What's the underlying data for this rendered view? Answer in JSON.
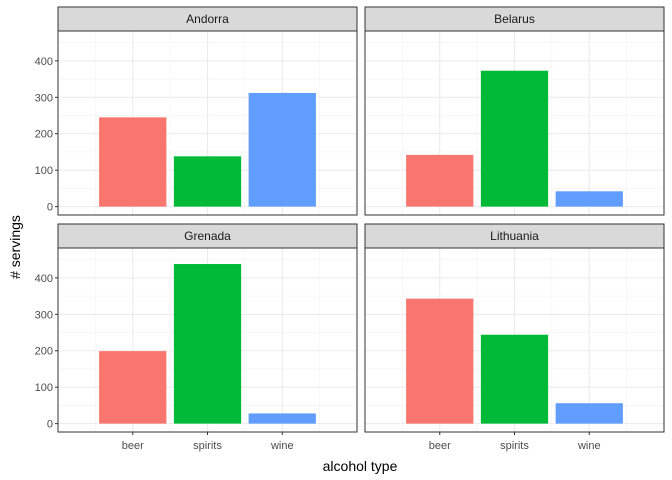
{
  "chart_data": {
    "type": "bar",
    "facets": [
      "Andorra",
      "Belarus",
      "Grenada",
      "Lithuania"
    ],
    "categories": [
      "beer",
      "spirits",
      "wine"
    ],
    "series": [
      {
        "name": "Andorra",
        "values": [
          245,
          138,
          312
        ]
      },
      {
        "name": "Belarus",
        "values": [
          142,
          373,
          42
        ]
      },
      {
        "name": "Grenada",
        "values": [
          199,
          438,
          28
        ]
      },
      {
        "name": "Lithuania",
        "values": [
          343,
          244,
          56
        ]
      }
    ],
    "xlabel": "alcohol type",
    "ylabel": "# servings",
    "ylim": [
      -23,
      482
    ],
    "yticks": [
      0,
      100,
      200,
      300,
      400
    ],
    "grid": true,
    "legend": "none",
    "colors": {
      "beer": "#F8766D",
      "spirits": "#00BA38",
      "wine": "#619CFF"
    },
    "strip_fill": "#D9D9D9"
  }
}
